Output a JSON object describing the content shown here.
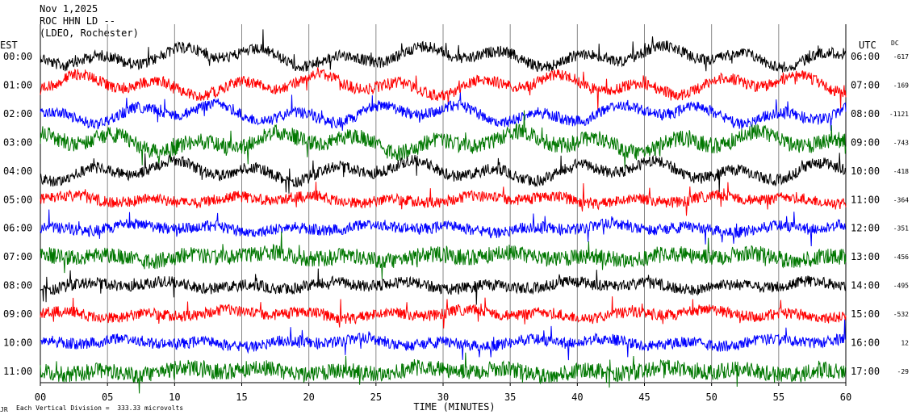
{
  "header": {
    "date": "Nov 1,2025",
    "station": "ROC HHN LD --",
    "network": "(LDEO, Rochester)"
  },
  "left_timezone": "EST",
  "right_timezone": "UTC",
  "dc_label": "DC",
  "footer": {
    "scale_note": "Each Vertical Division =  333.33 microvolts",
    "logo_text": "JR"
  },
  "chart_data": {
    "type": "line",
    "title": "",
    "xlabel": "TIME (MINUTES)",
    "ylabel": "",
    "xlim": [
      0,
      60
    ],
    "x_ticks": [
      "00",
      "05",
      "10",
      "15",
      "20",
      "25",
      "30",
      "35",
      "40",
      "45",
      "50",
      "55",
      "60"
    ],
    "colors": [
      "#000000",
      "#ff0000",
      "#0000ff",
      "#007700"
    ],
    "grid": "vertical lines every 5 minutes",
    "series": [
      {
        "est": "00:00",
        "utc": "06:00",
        "dc": "-617",
        "color": "#000000"
      },
      {
        "est": "01:00",
        "utc": "07:00",
        "dc": "-169",
        "color": "#ff0000"
      },
      {
        "est": "02:00",
        "utc": "08:00",
        "dc": "-1121",
        "color": "#0000ff"
      },
      {
        "est": "03:00",
        "utc": "09:00",
        "dc": "-743",
        "color": "#007700"
      },
      {
        "est": "04:00",
        "utc": "10:00",
        "dc": "-418",
        "color": "#000000"
      },
      {
        "est": "05:00",
        "utc": "11:00",
        "dc": "-364",
        "color": "#ff0000"
      },
      {
        "est": "06:00",
        "utc": "12:00",
        "dc": "-351",
        "color": "#0000ff"
      },
      {
        "est": "07:00",
        "utc": "13:00",
        "dc": "-456",
        "color": "#007700"
      },
      {
        "est": "08:00",
        "utc": "14:00",
        "dc": "-495",
        "color": "#000000"
      },
      {
        "est": "09:00",
        "utc": "15:00",
        "dc": "-532",
        "color": "#ff0000"
      },
      {
        "est": "10:00",
        "utc": "16:00",
        "dc": "12",
        "color": "#0000ff"
      },
      {
        "est": "11:00",
        "utc": "17:00",
        "dc": "-29",
        "color": "#007700"
      }
    ]
  }
}
